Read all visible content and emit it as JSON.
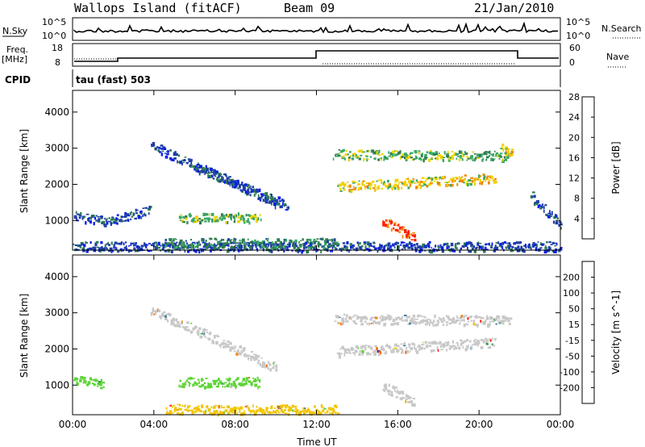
{
  "header": {
    "site": "Wallops Island (fitACF)",
    "beam": "Beam 09",
    "date": "21/Jan/2010"
  },
  "top_panels": {
    "nsky_label": "N.Sky",
    "nsky_ticks": [
      "10^5",
      "10^0"
    ],
    "nsearch_label": "N.Search",
    "nsearch_ticks": [
      "10^5",
      "10^0"
    ],
    "freq_label": "Freq.",
    "freq_unit": "[MHz]",
    "freq_ticks": [
      "18",
      "8"
    ],
    "nave_label": "Nave",
    "nave_ticks": [
      "60",
      "0"
    ],
    "cpid_label": "CPID",
    "cpid_value": "tau (fast) 503"
  },
  "chart_data": [
    {
      "type": "heatmap",
      "title": "",
      "xlabel": "",
      "ylabel": "Slant Range [km]",
      "x_ticks": [
        "00:00",
        "04:00",
        "08:00",
        "12:00",
        "16:00",
        "20:00",
        "00:00"
      ],
      "y_ticks": [
        "1000",
        "2000",
        "3000",
        "4000"
      ],
      "xlim_hours": [
        0,
        24
      ],
      "ylim_km": [
        180,
        4600
      ],
      "colorbar": {
        "label": "Power [dB]",
        "ticks": [
          "4",
          "8",
          "12",
          "16",
          "20",
          "24",
          "28"
        ],
        "colors": [
          "#0a1ee8",
          "#1e3fa6",
          "#2e7d4f",
          "#36a864",
          "#f1d200",
          "#f08a00",
          "#ff2000"
        ]
      },
      "features": [
        {
          "start_h": 0.0,
          "end_h": 1.5,
          "start_km": 1150,
          "end_km": 1000,
          "level": 1
        },
        {
          "start_h": 1.5,
          "end_h": 3.8,
          "start_km": 1000,
          "end_km": 1300,
          "level": 1
        },
        {
          "start_h": 5.2,
          "end_h": 9.2,
          "start_km": 1100,
          "end_km": 1100,
          "level": 3
        },
        {
          "start_h": 3.8,
          "end_h": 10.0,
          "start_km": 3100,
          "end_km": 1500,
          "level": 1
        },
        {
          "start_h": 6.0,
          "end_h": 10.6,
          "start_km": 2500,
          "end_km": 1400,
          "level": 1
        },
        {
          "start_h": 12.8,
          "end_h": 21.5,
          "start_km": 2850,
          "end_km": 2800,
          "level": 3
        },
        {
          "start_h": 13.0,
          "end_h": 20.8,
          "start_km": 1950,
          "end_km": 2200,
          "level": 4
        },
        {
          "start_h": 15.2,
          "end_h": 16.8,
          "start_km": 1000,
          "end_km": 550,
          "level": 6
        },
        {
          "start_h": 0.0,
          "end_h": 24.0,
          "start_km": 300,
          "end_km": 300,
          "level": 1
        },
        {
          "start_h": 4.5,
          "end_h": 13.0,
          "start_km": 400,
          "end_km": 400,
          "level": 2
        },
        {
          "start_h": 21.0,
          "end_h": 21.6,
          "start_km": 3100,
          "end_km": 2900,
          "level": 4
        },
        {
          "start_h": 22.5,
          "end_h": 24.0,
          "start_km": 1700,
          "end_km": 900,
          "level": 1
        }
      ]
    },
    {
      "type": "heatmap",
      "title": "",
      "xlabel": "Time UT",
      "ylabel": "Slant Range [km]",
      "x_ticks": [
        "00:00",
        "04:00",
        "08:00",
        "12:00",
        "16:00",
        "20:00",
        "00:00"
      ],
      "y_ticks": [
        "1000",
        "2000",
        "3000",
        "4000"
      ],
      "xlim_hours": [
        0,
        24
      ],
      "ylim_km": [
        180,
        4600
      ],
      "colorbar": {
        "label": "Velocity [m s^-1]",
        "ticks": [
          "200",
          "100",
          "50",
          "15",
          "-15",
          "-50",
          "-100",
          "-200"
        ],
        "colors": [
          "#1a2fc8",
          "#2a6f9a",
          "#3d9a50",
          "#5ed437",
          "#c8c8c8",
          "#f2c400",
          "#f38200",
          "#ff6a00",
          "#ff1a00"
        ]
      },
      "features": [
        {
          "start_h": 0.0,
          "end_h": 1.5,
          "start_km": 1150,
          "end_km": 1050,
          "velocity_class": "15..50"
        },
        {
          "start_h": 5.2,
          "end_h": 9.2,
          "start_km": 1100,
          "end_km": 1100,
          "velocity_class": "15..50"
        },
        {
          "start_h": 3.8,
          "end_h": 10.0,
          "start_km": 3100,
          "end_km": 1500,
          "velocity_class": "-15..15"
        },
        {
          "start_h": 12.8,
          "end_h": 21.5,
          "start_km": 2850,
          "end_km": 2800,
          "velocity_class": "-15..15"
        },
        {
          "start_h": 13.0,
          "end_h": 20.8,
          "start_km": 1950,
          "end_km": 2200,
          "velocity_class": "-15..15"
        },
        {
          "start_h": 15.2,
          "end_h": 16.8,
          "start_km": 1000,
          "end_km": 550,
          "velocity_class": "-15..15"
        },
        {
          "start_h": 4.5,
          "end_h": 13.0,
          "start_km": 350,
          "end_km": 350,
          "velocity_class": "-50..-15"
        }
      ]
    }
  ]
}
